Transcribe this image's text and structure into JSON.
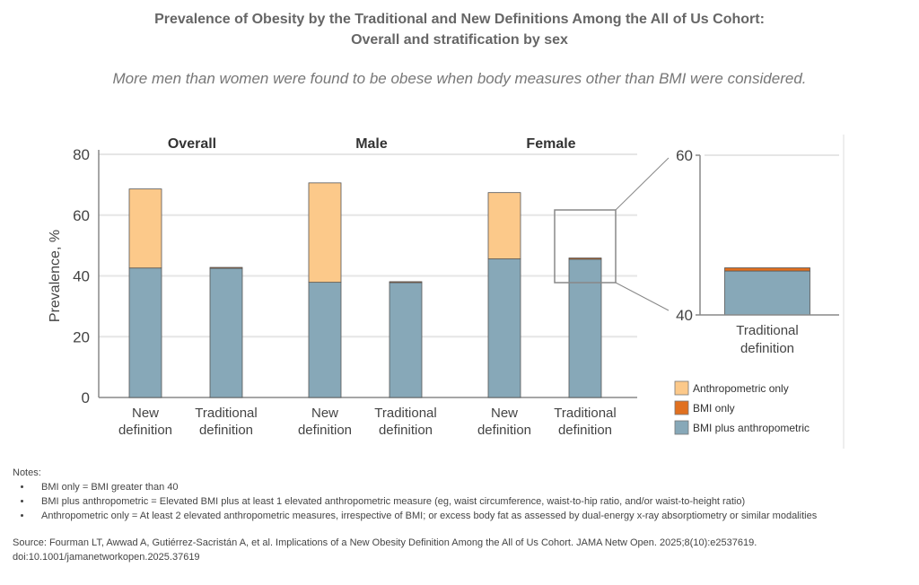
{
  "title_line1": "Prevalence of Obesity by the Traditional and New Definitions Among the All of Us Cohort:",
  "title_line2": "Overall and stratification by sex",
  "subtitle": "More men than women were found to be obese when body measures other than BMI were considered.",
  "chart_data": {
    "type": "bar",
    "stacked": true,
    "ylabel": "Prevalence, %",
    "ylim": [
      0,
      80
    ],
    "yticks": [
      0,
      20,
      40,
      60,
      80
    ],
    "grid": true,
    "groups": [
      "Overall",
      "Male",
      "Female"
    ],
    "categories": [
      "New definition",
      "Traditional definition"
    ],
    "category_labels": [
      [
        "New",
        "definition"
      ],
      [
        "Traditional",
        "definition"
      ]
    ],
    "series": [
      {
        "name": "BMI plus anthropometric",
        "color": "#87a8b8",
        "values": {
          "Overall": [
            42.6,
            42.5
          ],
          "Male": [
            37.9,
            37.8
          ],
          "Female": [
            45.6,
            45.5
          ]
        }
      },
      {
        "name": "BMI only",
        "color": "#e07020",
        "values": {
          "Overall": [
            0,
            0.3
          ],
          "Male": [
            0,
            0.3
          ],
          "Female": [
            0,
            0.4
          ]
        }
      },
      {
        "name": "Anthropometric only",
        "color": "#fcc98a",
        "values": {
          "Overall": [
            26.0,
            0
          ],
          "Male": [
            32.7,
            0
          ],
          "Female": [
            21.8,
            0
          ]
        }
      }
    ],
    "inset": {
      "group": "Female",
      "category": "Traditional definition",
      "ylim": [
        40,
        60
      ],
      "yticks": [
        40,
        60
      ]
    },
    "legend": {
      "placement": "bottom-right",
      "order": [
        "Anthropometric only",
        "BMI only",
        "BMI plus anthropometric"
      ]
    }
  },
  "notes": {
    "heading": "Notes:",
    "items": [
      "BMI only = BMI greater than 40",
      "BMI plus anthropometric = Elevated BMI plus at least 1 elevated anthropometric measure (eg, waist circumference, waist-to-hip ratio, and/or waist-to-height ratio)",
      "Anthropometric only = At least 2 elevated anthropometric measures, irrespective of BMI; or excess body fat as assessed by dual-energy x-ray absorptiometry or similar modalities"
    ]
  },
  "source": "Source: Fourman LT, Awwad A, Gutiérrez-Sacristán A, et al. Implications of a New Obesity Definition Among the All of Us Cohort. JAMA Netw Open. 2025;8(10):e2537619. doi:10.1001/jamanetworkopen.2025.37619"
}
